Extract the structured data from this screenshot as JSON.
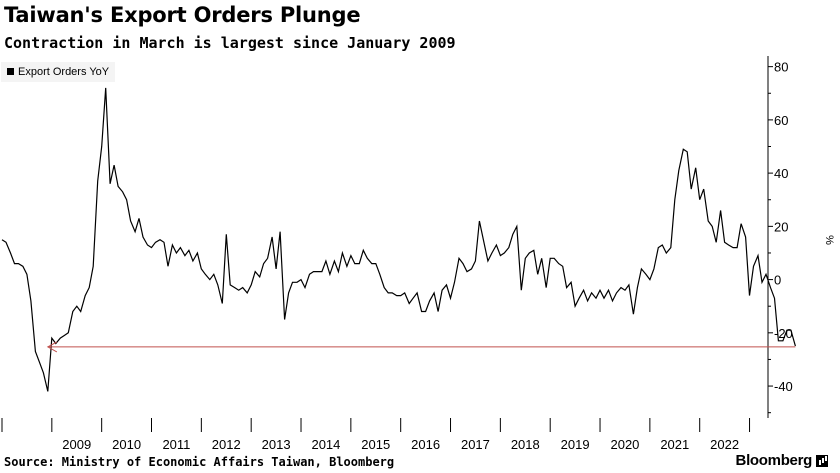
{
  "chart_data": {
    "type": "line",
    "title": "Taiwan's Export Orders Plunge",
    "subtitle": "Contraction in March is largest since January 2009",
    "ylabel": "%",
    "ylim": [
      -52,
      84
    ],
    "y_ticks": [
      80,
      60,
      40,
      20,
      0,
      -20,
      -40
    ],
    "x_range": [
      2008.0,
      2023.25
    ],
    "x_tick_labels": [
      "2009",
      "2010",
      "2011",
      "2012",
      "2013",
      "2014",
      "2015",
      "2016",
      "2017",
      "2018",
      "2019",
      "2020",
      "2021",
      "2022"
    ],
    "legend": {
      "position": "top-left",
      "label": "Export Orders YoY"
    },
    "series": [
      {
        "name": "Export Orders YoY",
        "points": [
          [
            2008.0,
            15
          ],
          [
            2008.08,
            14
          ],
          [
            2008.17,
            10
          ],
          [
            2008.25,
            6
          ],
          [
            2008.33,
            6
          ],
          [
            2008.42,
            5
          ],
          [
            2008.5,
            2
          ],
          [
            2008.58,
            -8
          ],
          [
            2008.67,
            -27
          ],
          [
            2008.75,
            -31
          ],
          [
            2008.83,
            -35
          ],
          [
            2008.92,
            -42
          ],
          [
            2009.0,
            -22
          ],
          [
            2009.08,
            -24
          ],
          [
            2009.17,
            -22
          ],
          [
            2009.25,
            -21
          ],
          [
            2009.33,
            -20
          ],
          [
            2009.42,
            -12
          ],
          [
            2009.5,
            -10
          ],
          [
            2009.58,
            -12
          ],
          [
            2009.67,
            -6
          ],
          [
            2009.75,
            -3
          ],
          [
            2009.83,
            5
          ],
          [
            2009.92,
            37
          ],
          [
            2010.0,
            50
          ],
          [
            2010.08,
            72
          ],
          [
            2010.17,
            36
          ],
          [
            2010.25,
            43
          ],
          [
            2010.33,
            35
          ],
          [
            2010.42,
            33
          ],
          [
            2010.5,
            30
          ],
          [
            2010.58,
            22
          ],
          [
            2010.67,
            18
          ],
          [
            2010.75,
            23
          ],
          [
            2010.83,
            16
          ],
          [
            2010.92,
            13
          ],
          [
            2011.0,
            12
          ],
          [
            2011.08,
            14
          ],
          [
            2011.17,
            15
          ],
          [
            2011.25,
            14
          ],
          [
            2011.33,
            5
          ],
          [
            2011.42,
            13
          ],
          [
            2011.5,
            10
          ],
          [
            2011.58,
            12
          ],
          [
            2011.67,
            9
          ],
          [
            2011.75,
            11
          ],
          [
            2011.83,
            7
          ],
          [
            2011.92,
            10
          ],
          [
            2012.0,
            4
          ],
          [
            2012.08,
            2
          ],
          [
            2012.17,
            0
          ],
          [
            2012.25,
            2
          ],
          [
            2012.33,
            -2
          ],
          [
            2012.42,
            -9
          ],
          [
            2012.5,
            17
          ],
          [
            2012.58,
            -2
          ],
          [
            2012.67,
            -3
          ],
          [
            2012.75,
            -4
          ],
          [
            2012.83,
            -3
          ],
          [
            2012.92,
            -5
          ],
          [
            2013.0,
            -2
          ],
          [
            2013.08,
            3
          ],
          [
            2013.17,
            1
          ],
          [
            2013.25,
            6
          ],
          [
            2013.33,
            8
          ],
          [
            2013.42,
            16
          ],
          [
            2013.5,
            4
          ],
          [
            2013.58,
            18
          ],
          [
            2013.67,
            -15
          ],
          [
            2013.75,
            -5
          ],
          [
            2013.83,
            -1
          ],
          [
            2013.92,
            -1
          ],
          [
            2014.0,
            0
          ],
          [
            2014.08,
            -3
          ],
          [
            2014.17,
            2
          ],
          [
            2014.25,
            3
          ],
          [
            2014.33,
            3
          ],
          [
            2014.42,
            3
          ],
          [
            2014.5,
            7
          ],
          [
            2014.58,
            2
          ],
          [
            2014.67,
            7
          ],
          [
            2014.75,
            3
          ],
          [
            2014.83,
            10
          ],
          [
            2014.92,
            5
          ],
          [
            2015.0,
            9
          ],
          [
            2015.08,
            6
          ],
          [
            2015.17,
            6
          ],
          [
            2015.25,
            11
          ],
          [
            2015.33,
            8
          ],
          [
            2015.42,
            6
          ],
          [
            2015.5,
            6
          ],
          [
            2015.58,
            2
          ],
          [
            2015.67,
            -3
          ],
          [
            2015.75,
            -5
          ],
          [
            2015.83,
            -5
          ],
          [
            2015.92,
            -6
          ],
          [
            2016.0,
            -6
          ],
          [
            2016.08,
            -5
          ],
          [
            2016.17,
            -9
          ],
          [
            2016.25,
            -7
          ],
          [
            2016.33,
            -5
          ],
          [
            2016.42,
            -12
          ],
          [
            2016.5,
            -12
          ],
          [
            2016.58,
            -8
          ],
          [
            2016.67,
            -5
          ],
          [
            2016.75,
            -12
          ],
          [
            2016.83,
            -4
          ],
          [
            2016.92,
            -2
          ],
          [
            2017.0,
            -7
          ],
          [
            2017.08,
            -1
          ],
          [
            2017.17,
            8
          ],
          [
            2017.25,
            6
          ],
          [
            2017.33,
            3
          ],
          [
            2017.42,
            4
          ],
          [
            2017.5,
            7
          ],
          [
            2017.58,
            22
          ],
          [
            2017.67,
            14
          ],
          [
            2017.75,
            7
          ],
          [
            2017.83,
            10
          ],
          [
            2017.92,
            13
          ],
          [
            2018.0,
            9
          ],
          [
            2018.08,
            10
          ],
          [
            2018.17,
            12
          ],
          [
            2018.25,
            17
          ],
          [
            2018.33,
            20
          ],
          [
            2018.42,
            -4
          ],
          [
            2018.5,
            8
          ],
          [
            2018.58,
            10
          ],
          [
            2018.67,
            11
          ],
          [
            2018.75,
            2
          ],
          [
            2018.83,
            8
          ],
          [
            2018.92,
            -3
          ],
          [
            2019.0,
            8
          ],
          [
            2019.08,
            8
          ],
          [
            2019.17,
            6
          ],
          [
            2019.25,
            5
          ],
          [
            2019.33,
            -3
          ],
          [
            2019.42,
            -1
          ],
          [
            2019.5,
            -10
          ],
          [
            2019.58,
            -7
          ],
          [
            2019.67,
            -4
          ],
          [
            2019.75,
            -8
          ],
          [
            2019.83,
            -5
          ],
          [
            2019.92,
            -7
          ],
          [
            2020.0,
            -4
          ],
          [
            2020.08,
            -7
          ],
          [
            2020.17,
            -4
          ],
          [
            2020.25,
            -8
          ],
          [
            2020.33,
            -5
          ],
          [
            2020.42,
            -3
          ],
          [
            2020.5,
            -4
          ],
          [
            2020.58,
            -2
          ],
          [
            2020.67,
            -13
          ],
          [
            2020.75,
            -3
          ],
          [
            2020.83,
            4
          ],
          [
            2020.92,
            2
          ],
          [
            2021.0,
            0
          ],
          [
            2021.08,
            4
          ],
          [
            2021.17,
            12
          ],
          [
            2021.25,
            13
          ],
          [
            2021.33,
            10
          ],
          [
            2021.42,
            12
          ],
          [
            2021.5,
            30
          ],
          [
            2021.58,
            41
          ],
          [
            2021.67,
            49
          ],
          [
            2021.75,
            48
          ],
          [
            2021.83,
            34
          ],
          [
            2021.92,
            42
          ],
          [
            2022.0,
            30
          ],
          [
            2022.08,
            34
          ],
          [
            2022.17,
            22
          ],
          [
            2022.25,
            20
          ],
          [
            2022.33,
            14
          ],
          [
            2022.42,
            26
          ],
          [
            2022.5,
            14
          ],
          [
            2022.58,
            13
          ],
          [
            2022.67,
            12
          ],
          [
            2022.75,
            12
          ],
          [
            2022.83,
            21
          ],
          [
            2022.92,
            16
          ],
          [
            2023.0,
            -6
          ],
          [
            2023.08,
            5
          ],
          [
            2023.17,
            9
          ],
          [
            2023.25,
            -1
          ],
          [
            2023.33,
            2
          ],
          [
            2023.42,
            -3
          ],
          [
            2023.5,
            -7
          ],
          [
            2023.58,
            -23
          ],
          [
            2023.67,
            -23
          ],
          [
            2023.75,
            -19
          ],
          [
            2023.83,
            -19
          ],
          [
            2023.92,
            -25
          ]
        ]
      }
    ],
    "annotation": {
      "type": "arrow",
      "from": [
        2023.92,
        -25.3
      ],
      "to": [
        2008.92,
        -25.3
      ],
      "color": "#c0504d"
    }
  },
  "source": "Source: Ministry of Economic Affairs Taiwan, Bloomberg",
  "brand": "Bloomberg"
}
